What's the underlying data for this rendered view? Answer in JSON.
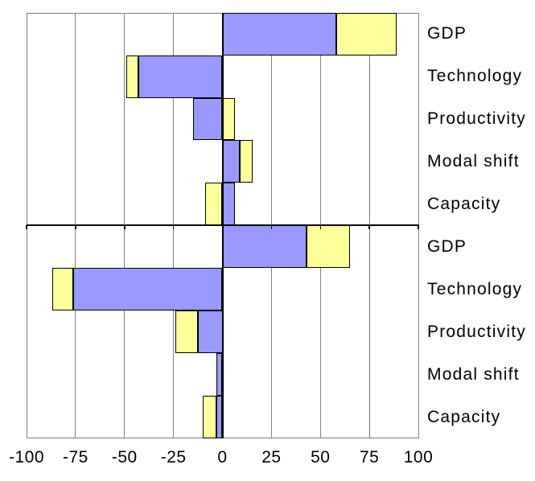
{
  "chart_data": {
    "type": "bar",
    "orientation": "horizontal",
    "stacked": true,
    "title": "",
    "xlabel": "",
    "ylabel": "",
    "legend": "none",
    "grid": true,
    "category_labels_position": "right",
    "x_axis": {
      "min": -100,
      "max": 100,
      "tick_step": 25,
      "tick_labels": [
        "-100",
        "-75",
        "-50",
        "-25",
        "0",
        "25",
        "50",
        "75",
        "100"
      ]
    },
    "colors": {
      "series_blue": "#9999FF",
      "series_yellow": "#FFFF99",
      "bar_border": "#000000",
      "gridline": "#808080",
      "axis_line": "#000000",
      "text": "#000000",
      "background": "#FFFFFF"
    },
    "panels": [
      {
        "rows": [
          {
            "label": "GDP",
            "blue": [
              0,
              58
            ],
            "yellow": [
              58,
              89
            ]
          },
          {
            "label": "Technology",
            "blue": [
              -43,
              0
            ],
            "yellow": [
              -49,
              -43
            ]
          },
          {
            "label": "Productivity",
            "blue": [
              -15,
              0
            ],
            "yellow": [
              0,
              6.5
            ]
          },
          {
            "label": "Modal shift",
            "blue": [
              0,
              9
            ],
            "yellow": [
              9,
              15.5
            ]
          },
          {
            "label": "Capacity",
            "blue": [
              0,
              6.5
            ],
            "yellow": [
              -9,
              0
            ]
          }
        ]
      },
      {
        "rows": [
          {
            "label": "GDP",
            "blue": [
              0,
              43
            ],
            "yellow": [
              43,
              65
            ]
          },
          {
            "label": "Technology",
            "blue": [
              -76,
              0
            ],
            "yellow": [
              -87,
              -76
            ]
          },
          {
            "label": "Productivity",
            "blue": [
              -12.5,
              0
            ],
            "yellow": [
              -24,
              -12.5
            ]
          },
          {
            "label": "Modal shift",
            "blue": [
              -3,
              0
            ],
            "yellow": null
          },
          {
            "label": "Capacity",
            "blue": [
              -3,
              0
            ],
            "yellow": [
              -10,
              -3
            ]
          }
        ]
      }
    ]
  }
}
